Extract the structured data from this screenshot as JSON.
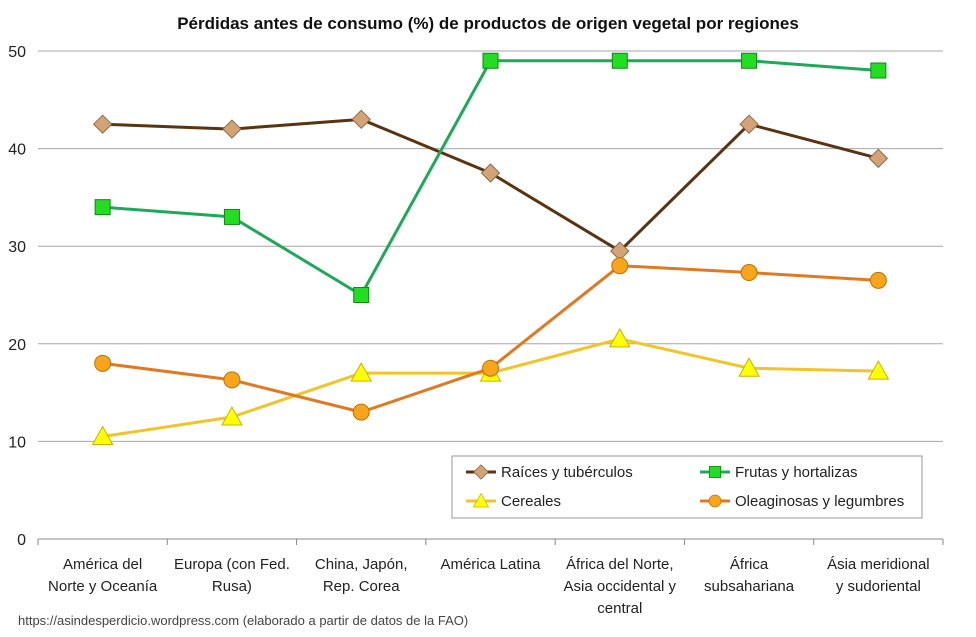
{
  "chart_data": {
    "type": "line",
    "title": "Pérdidas antes de consumo (%) de productos de origen vegetal por regiones",
    "xlabel": "",
    "ylabel": "",
    "ylim": [
      0,
      50
    ],
    "yticks": [
      0,
      10,
      20,
      30,
      40,
      50
    ],
    "grid": true,
    "legend_position": "bottom-right",
    "categories": [
      [
        "América del",
        "Norte y Oceanía"
      ],
      [
        "Europa (con Fed.",
        "Rusa)"
      ],
      [
        "China, Japón,",
        "Rep. Corea"
      ],
      [
        "América Latina"
      ],
      [
        "África del Norte,",
        "Asia occidental y",
        "central"
      ],
      [
        "África",
        "subsahariana"
      ],
      [
        "Ásia meridional",
        "y sudoriental"
      ]
    ],
    "series": [
      {
        "name": "Raíces y tubérculos",
        "values": [
          42.5,
          42.0,
          43.0,
          37.5,
          29.5,
          42.5,
          39.0
        ],
        "color": "#5a3311",
        "marker": "diamond",
        "marker_fill": "#d4a373",
        "marker_stroke": "#8a6a4a"
      },
      {
        "name": "Frutas y hortalizas",
        "values": [
          34.0,
          33.0,
          25.0,
          49.0,
          49.0,
          49.0,
          48.0
        ],
        "color": "#1ea85a",
        "marker": "square",
        "marker_fill": "#22dd22",
        "marker_stroke": "#118811"
      },
      {
        "name": "Cereales",
        "values": [
          10.5,
          12.5,
          17.0,
          17.0,
          20.5,
          17.5,
          17.2
        ],
        "color": "#f2c428",
        "marker": "triangle",
        "marker_fill": "#ffff00",
        "marker_stroke": "#c8b400"
      },
      {
        "name": "Oleaginosas y legumbres",
        "values": [
          18.0,
          16.3,
          13.0,
          17.5,
          28.0,
          27.3,
          26.5
        ],
        "color": "#e07a22",
        "marker": "circle",
        "marker_fill": "#f8a51c",
        "marker_stroke": "#c07000"
      }
    ]
  },
  "source_note": "https://asindesperdicio.wordpress.com  (elaborado a partir de datos de la FAO)"
}
